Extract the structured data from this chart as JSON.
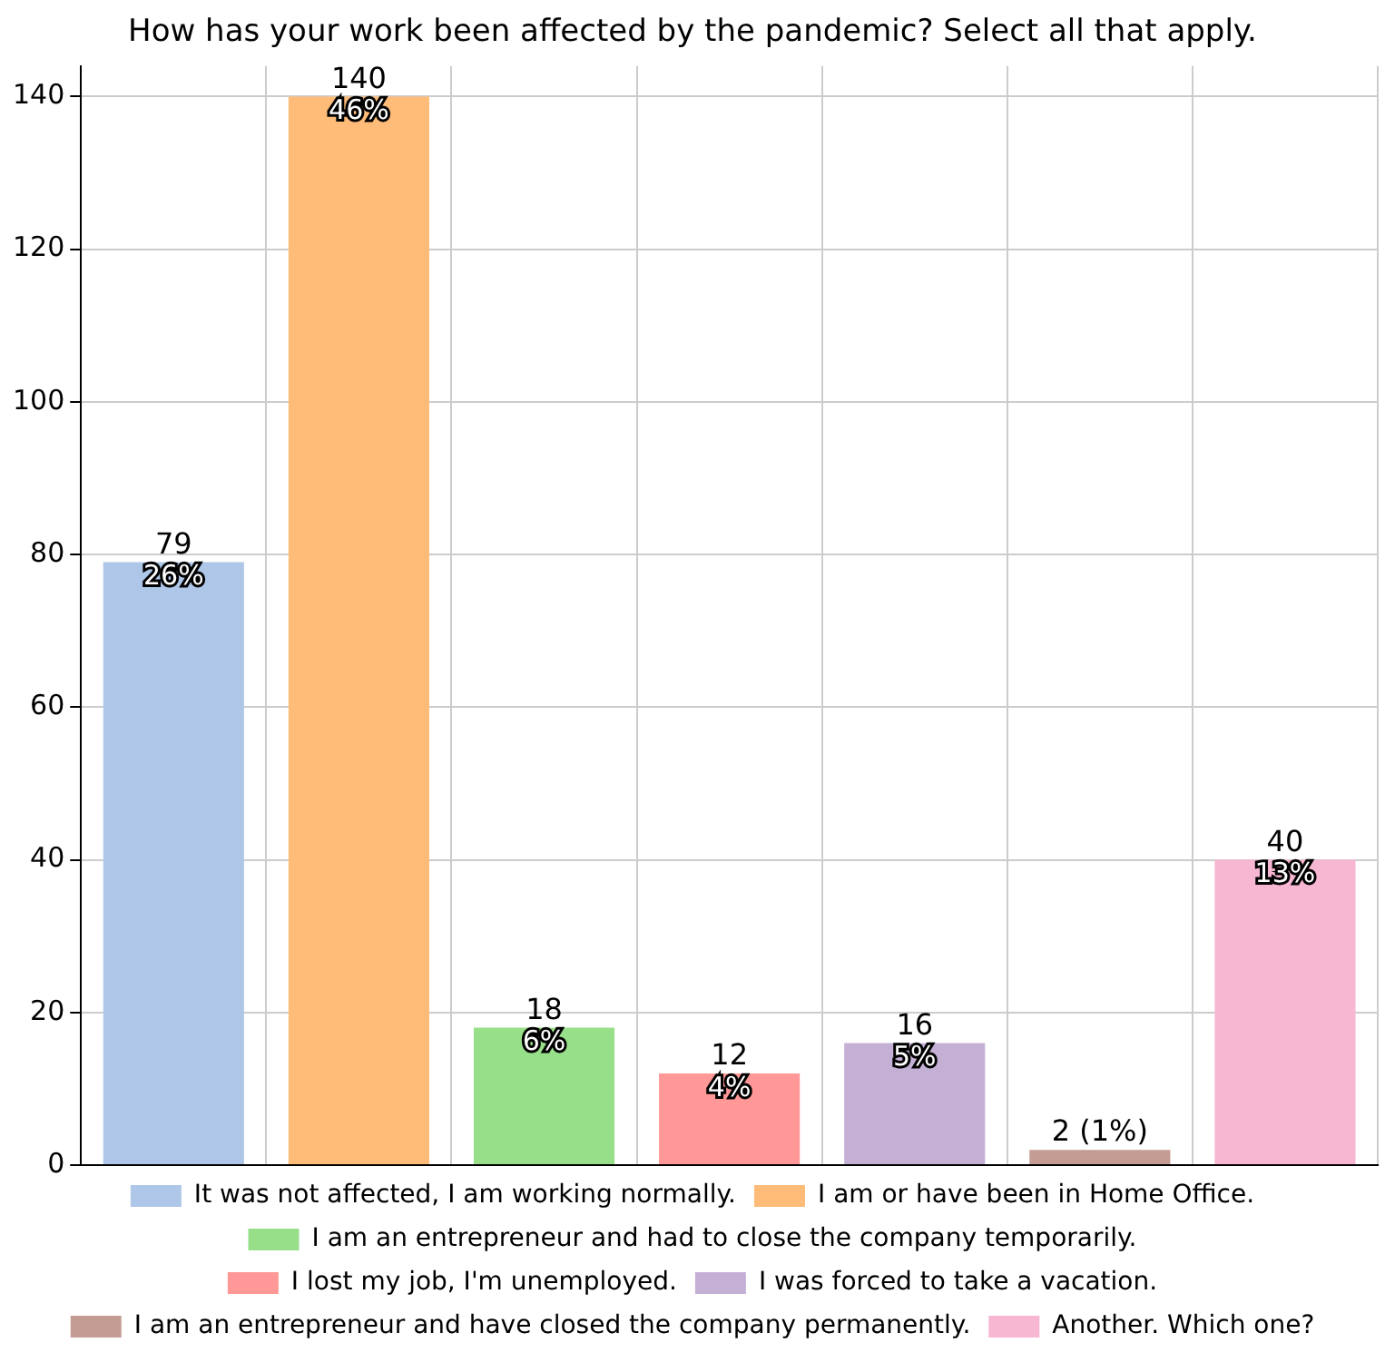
{
  "chart_data": {
    "type": "bar",
    "title": "How has your work been affected by the pandemic? Select all that apply.",
    "categories": [
      null,
      null,
      null,
      null,
      null,
      null,
      null
    ],
    "series": [
      {
        "name": "It was not affected, I am working normally.",
        "color": "#aec7e8",
        "values": [
          79,
          null,
          null,
          null,
          null,
          null,
          null
        ],
        "value_labels": [
          "79\n26%",
          null,
          null,
          null,
          null,
          null,
          null
        ]
      },
      {
        "name": "I am or have been in Home Office.",
        "color": "#ffbb78",
        "values": [
          null,
          140,
          null,
          null,
          null,
          null,
          null
        ],
        "value_labels": [
          null,
          "140\n46%",
          null,
          null,
          null,
          null,
          null
        ]
      },
      {
        "name": "I am an entrepreneur and had to close the company temporarily.",
        "color": "#98df8a",
        "values": [
          null,
          null,
          18,
          null,
          null,
          null,
          null
        ],
        "value_labels": [
          null,
          null,
          "18\n6%",
          null,
          null,
          null,
          null
        ]
      },
      {
        "name": "I lost my job, I'm unemployed.",
        "color": "#ff9896",
        "values": [
          null,
          null,
          null,
          12,
          null,
          null,
          null
        ],
        "value_labels": [
          null,
          null,
          null,
          "12\n4%",
          null,
          null,
          null
        ]
      },
      {
        "name": "I was forced to take a vacation.",
        "color": "#c5b0d5",
        "values": [
          null,
          null,
          null,
          null,
          16,
          null,
          null
        ],
        "value_labels": [
          null,
          null,
          null,
          null,
          "16\n5%",
          null,
          null
        ]
      },
      {
        "name": "I am an entrepreneur and have closed the company permanently.",
        "color": "#c49c94",
        "values": [
          null,
          null,
          null,
          null,
          null,
          2,
          null
        ],
        "value_labels": [
          null,
          null,
          null,
          null,
          null,
          "2 (1%)",
          null
        ]
      },
      {
        "name": "Another. Which one?",
        "color": "#f7b6d2",
        "values": [
          null,
          null,
          null,
          null,
          null,
          null,
          40
        ],
        "value_labels": [
          null,
          null,
          null,
          null,
          null,
          null,
          "40\n13%"
        ]
      }
    ],
    "ylim": [
      0,
      144
    ],
    "yticks": [
      0,
      20,
      40,
      60,
      80,
      100,
      120,
      140
    ],
    "grid": true,
    "legend": "bottom",
    "tick_labels": "y"
  }
}
